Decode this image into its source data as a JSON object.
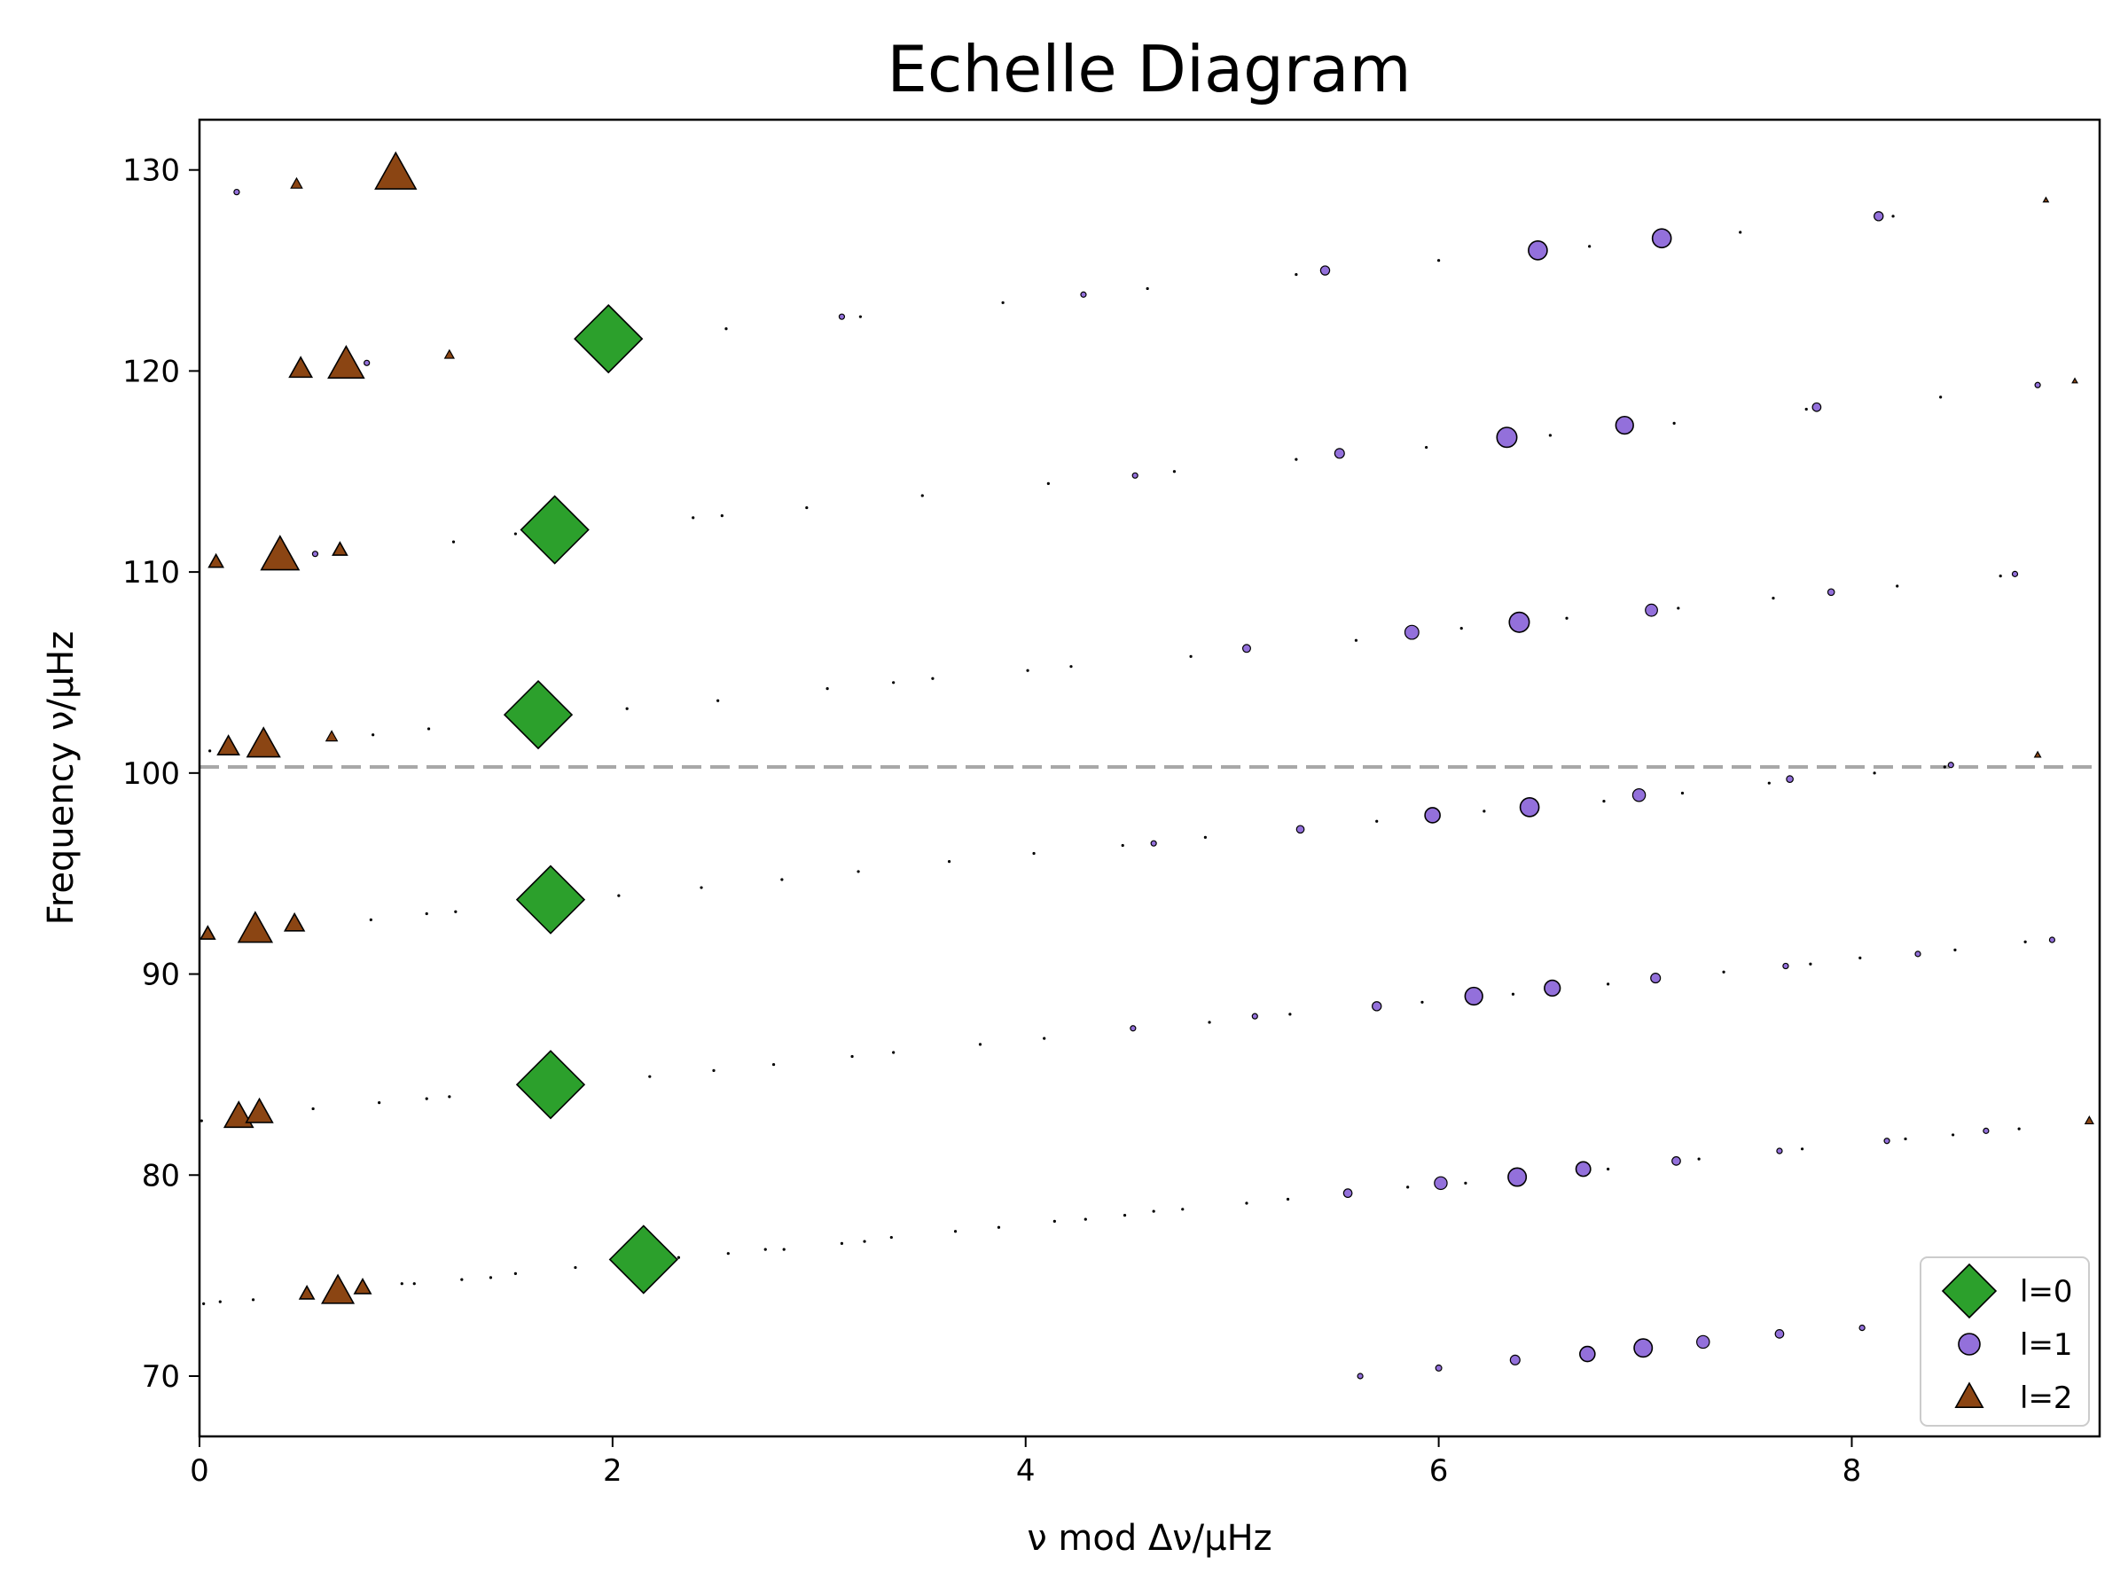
{
  "chart_data": {
    "type": "scatter",
    "title": "Echelle Diagram",
    "xlabel": "ν mod Δν/μHz",
    "ylabel": "Frequency ν/μHz",
    "xlim": [
      0,
      9.2
    ],
    "ylim": [
      67,
      132.5
    ],
    "xticks": [
      0,
      2,
      4,
      6,
      8
    ],
    "yticks": [
      70,
      80,
      90,
      100,
      110,
      120,
      130
    ],
    "grid": false,
    "legend_position": "bottom-right",
    "reference_line": {
      "y": 100.3,
      "style": "dashed",
      "color": "#a8a8a8"
    },
    "series": [
      {
        "name": "l=0",
        "marker": "diamond",
        "color": "#2ca02c",
        "points": [
          {
            "x": 2.15,
            "y": 75.8,
            "s": 1.0
          },
          {
            "x": 1.7,
            "y": 84.5,
            "s": 1.0
          },
          {
            "x": 1.7,
            "y": 93.7,
            "s": 1.0
          },
          {
            "x": 1.64,
            "y": 102.9,
            "s": 1.0
          },
          {
            "x": 1.72,
            "y": 112.1,
            "s": 1.0
          },
          {
            "x": 1.98,
            "y": 121.6,
            "s": 1.0
          }
        ]
      },
      {
        "name": "l=1",
        "marker": "circle",
        "color": "#9370db",
        "points": [
          {
            "x": 5.62,
            "y": 70.0,
            "s": 0.15
          },
          {
            "x": 6.0,
            "y": 70.4,
            "s": 0.2
          },
          {
            "x": 6.37,
            "y": 70.8,
            "s": 0.32
          },
          {
            "x": 6.72,
            "y": 71.1,
            "s": 0.5
          },
          {
            "x": 6.99,
            "y": 71.4,
            "s": 0.6
          },
          {
            "x": 7.28,
            "y": 71.7,
            "s": 0.42
          },
          {
            "x": 7.65,
            "y": 72.1,
            "s": 0.28
          },
          {
            "x": 8.05,
            "y": 72.4,
            "s": 0.18
          },
          {
            "x": 5.56,
            "y": 79.1,
            "s": 0.28
          },
          {
            "x": 6.01,
            "y": 79.6,
            "s": 0.42
          },
          {
            "x": 6.38,
            "y": 79.9,
            "s": 0.6
          },
          {
            "x": 6.7,
            "y": 80.3,
            "s": 0.48
          },
          {
            "x": 7.15,
            "y": 80.7,
            "s": 0.28
          },
          {
            "x": 7.65,
            "y": 81.2,
            "s": 0.18
          },
          {
            "x": 8.17,
            "y": 81.7,
            "s": 0.12
          },
          {
            "x": 8.65,
            "y": 82.2,
            "s": 0.08
          },
          {
            "x": 4.52,
            "y": 87.3,
            "s": 0.12
          },
          {
            "x": 5.11,
            "y": 87.9,
            "s": 0.15
          },
          {
            "x": 5.7,
            "y": 88.4,
            "s": 0.3
          },
          {
            "x": 6.17,
            "y": 88.9,
            "s": 0.58
          },
          {
            "x": 6.55,
            "y": 89.3,
            "s": 0.52
          },
          {
            "x": 7.05,
            "y": 89.8,
            "s": 0.32
          },
          {
            "x": 7.68,
            "y": 90.4,
            "s": 0.18
          },
          {
            "x": 8.32,
            "y": 91.0,
            "s": 0.12
          },
          {
            "x": 8.97,
            "y": 91.7,
            "s": 0.1
          },
          {
            "x": 4.62,
            "y": 96.5,
            "s": 0.15
          },
          {
            "x": 5.33,
            "y": 97.2,
            "s": 0.25
          },
          {
            "x": 5.97,
            "y": 97.9,
            "s": 0.5
          },
          {
            "x": 6.44,
            "y": 98.3,
            "s": 0.62
          },
          {
            "x": 6.97,
            "y": 98.9,
            "s": 0.42
          },
          {
            "x": 7.7,
            "y": 99.7,
            "s": 0.22
          },
          {
            "x": 8.48,
            "y": 100.4,
            "s": 0.15
          },
          {
            "x": 5.07,
            "y": 106.2,
            "s": 0.26
          },
          {
            "x": 5.87,
            "y": 107.0,
            "s": 0.46
          },
          {
            "x": 6.39,
            "y": 107.5,
            "s": 0.66
          },
          {
            "x": 7.03,
            "y": 108.1,
            "s": 0.4
          },
          {
            "x": 7.9,
            "y": 109.0,
            "s": 0.22
          },
          {
            "x": 8.79,
            "y": 109.9,
            "s": 0.15
          },
          {
            "x": 4.53,
            "y": 114.8,
            "s": 0.16
          },
          {
            "x": 5.52,
            "y": 115.9,
            "s": 0.32
          },
          {
            "x": 6.33,
            "y": 116.7,
            "s": 0.66
          },
          {
            "x": 6.9,
            "y": 117.3,
            "s": 0.58
          },
          {
            "x": 7.83,
            "y": 118.2,
            "s": 0.28
          },
          {
            "x": 8.9,
            "y": 119.3,
            "s": 0.16
          },
          {
            "x": 4.28,
            "y": 123.8,
            "s": 0.15
          },
          {
            "x": 5.45,
            "y": 125.0,
            "s": 0.3
          },
          {
            "x": 6.48,
            "y": 126.0,
            "s": 0.62
          },
          {
            "x": 7.08,
            "y": 126.6,
            "s": 0.62
          },
          {
            "x": 8.13,
            "y": 127.7,
            "s": 0.3
          },
          {
            "x": 0.18,
            "y": 128.9,
            "s": 0.18
          },
          {
            "x": 0.81,
            "y": 120.4,
            "s": 0.15
          },
          {
            "x": 0.56,
            "y": 110.9,
            "s": 0.12
          },
          {
            "x": 3.11,
            "y": 122.7,
            "s": 0.12
          }
        ]
      },
      {
        "name": "l=2",
        "marker": "triangle",
        "color": "#8b4513",
        "points": [
          {
            "x": 0.67,
            "y": 74.2,
            "s": 0.62
          },
          {
            "x": 0.52,
            "y": 74.1,
            "s": 0.28
          },
          {
            "x": 0.79,
            "y": 74.4,
            "s": 0.32
          },
          {
            "x": 0.19,
            "y": 82.9,
            "s": 0.56
          },
          {
            "x": 0.29,
            "y": 83.1,
            "s": 0.52
          },
          {
            "x": 0.27,
            "y": 92.2,
            "s": 0.66
          },
          {
            "x": 0.46,
            "y": 92.5,
            "s": 0.38
          },
          {
            "x": 0.04,
            "y": 92.0,
            "s": 0.28
          },
          {
            "x": 0.31,
            "y": 101.4,
            "s": 0.64
          },
          {
            "x": 0.14,
            "y": 101.3,
            "s": 0.42
          },
          {
            "x": 0.64,
            "y": 101.8,
            "s": 0.22
          },
          {
            "x": 0.39,
            "y": 110.8,
            "s": 0.74
          },
          {
            "x": 0.08,
            "y": 110.5,
            "s": 0.28
          },
          {
            "x": 0.68,
            "y": 111.1,
            "s": 0.28
          },
          {
            "x": 0.71,
            "y": 120.3,
            "s": 0.7
          },
          {
            "x": 0.49,
            "y": 120.1,
            "s": 0.44
          },
          {
            "x": 1.21,
            "y": 120.8,
            "s": 0.18
          },
          {
            "x": 0.95,
            "y": 129.8,
            "s": 0.8
          },
          {
            "x": 0.47,
            "y": 129.3,
            "s": 0.22
          },
          {
            "x": 9.15,
            "y": 82.7,
            "s": 0.16
          },
          {
            "x": 8.9,
            "y": 100.9,
            "s": 0.12
          },
          {
            "x": 8.94,
            "y": 128.5,
            "s": 0.1
          },
          {
            "x": 9.08,
            "y": 119.5,
            "s": 0.1
          }
        ]
      }
    ],
    "minor_points": [
      [
        0.02,
        73.6
      ],
      [
        0.1,
        73.7
      ],
      [
        0.26,
        73.8
      ],
      [
        0.98,
        74.6
      ],
      [
        1.04,
        74.6
      ],
      [
        1.27,
        74.8
      ],
      [
        1.41,
        74.9
      ],
      [
        1.53,
        75.1
      ],
      [
        1.82,
        75.4
      ],
      [
        2.32,
        75.9
      ],
      [
        2.56,
        76.1
      ],
      [
        2.74,
        76.3
      ],
      [
        2.83,
        76.3
      ],
      [
        3.11,
        76.6
      ],
      [
        3.22,
        76.7
      ],
      [
        3.35,
        76.9
      ],
      [
        3.66,
        77.2
      ],
      [
        3.87,
        77.4
      ],
      [
        4.14,
        77.7
      ],
      [
        4.29,
        77.8
      ],
      [
        4.48,
        78.0
      ],
      [
        4.62,
        78.2
      ],
      [
        4.76,
        78.3
      ],
      [
        5.07,
        78.6
      ],
      [
        5.27,
        78.8
      ],
      [
        5.85,
        79.4
      ],
      [
        6.13,
        79.6
      ],
      [
        6.82,
        80.3
      ],
      [
        7.26,
        80.8
      ],
      [
        7.76,
        81.3
      ],
      [
        8.26,
        81.8
      ],
      [
        8.49,
        82.0
      ],
      [
        8.81,
        82.3
      ],
      [
        0.01,
        82.7
      ],
      [
        0.55,
        83.3
      ],
      [
        0.87,
        83.6
      ],
      [
        1.1,
        83.8
      ],
      [
        1.21,
        83.9
      ],
      [
        1.82,
        84.6
      ],
      [
        2.18,
        84.9
      ],
      [
        2.49,
        85.2
      ],
      [
        2.78,
        85.5
      ],
      [
        3.16,
        85.9
      ],
      [
        3.36,
        86.1
      ],
      [
        3.78,
        86.5
      ],
      [
        4.09,
        86.8
      ],
      [
        4.89,
        87.6
      ],
      [
        5.28,
        88.0
      ],
      [
        5.92,
        88.6
      ],
      [
        6.36,
        89.0
      ],
      [
        6.82,
        89.5
      ],
      [
        7.38,
        90.1
      ],
      [
        7.8,
        90.5
      ],
      [
        8.04,
        90.8
      ],
      [
        8.5,
        91.2
      ],
      [
        8.84,
        91.6
      ],
      [
        0.83,
        92.7
      ],
      [
        1.1,
        93.0
      ],
      [
        1.24,
        93.1
      ],
      [
        2.03,
        93.9
      ],
      [
        2.43,
        94.3
      ],
      [
        2.82,
        94.7
      ],
      [
        3.19,
        95.1
      ],
      [
        3.63,
        95.6
      ],
      [
        4.04,
        96.0
      ],
      [
        4.47,
        96.4
      ],
      [
        4.87,
        96.8
      ],
      [
        5.7,
        97.6
      ],
      [
        6.22,
        98.1
      ],
      [
        6.8,
        98.6
      ],
      [
        7.18,
        99.0
      ],
      [
        7.6,
        99.5
      ],
      [
        8.11,
        100.0
      ],
      [
        8.45,
        100.3
      ],
      [
        0.05,
        101.1
      ],
      [
        0.84,
        101.9
      ],
      [
        1.11,
        102.2
      ],
      [
        1.55,
        102.7
      ],
      [
        2.07,
        103.2
      ],
      [
        2.51,
        103.6
      ],
      [
        3.04,
        104.2
      ],
      [
        3.36,
        104.5
      ],
      [
        3.55,
        104.7
      ],
      [
        4.01,
        105.1
      ],
      [
        4.22,
        105.3
      ],
      [
        4.8,
        105.8
      ],
      [
        5.6,
        106.6
      ],
      [
        6.11,
        107.2
      ],
      [
        6.62,
        107.7
      ],
      [
        7.16,
        108.2
      ],
      [
        7.62,
        108.7
      ],
      [
        8.22,
        109.3
      ],
      [
        8.72,
        109.8
      ],
      [
        1.23,
        111.5
      ],
      [
        1.53,
        111.9
      ],
      [
        1.85,
        112.2
      ],
      [
        2.39,
        112.7
      ],
      [
        2.53,
        112.8
      ],
      [
        2.94,
        113.2
      ],
      [
        3.5,
        113.8
      ],
      [
        4.11,
        114.4
      ],
      [
        4.72,
        115.0
      ],
      [
        5.31,
        115.6
      ],
      [
        5.94,
        116.2
      ],
      [
        6.54,
        116.8
      ],
      [
        7.14,
        117.4
      ],
      [
        7.78,
        118.1
      ],
      [
        8.43,
        118.7
      ],
      [
        1.85,
        121.4
      ],
      [
        2.55,
        122.1
      ],
      [
        3.2,
        122.7
      ],
      [
        3.89,
        123.4
      ],
      [
        4.59,
        124.1
      ],
      [
        5.31,
        124.8
      ],
      [
        6.0,
        125.5
      ],
      [
        6.73,
        126.2
      ],
      [
        7.46,
        126.9
      ],
      [
        8.2,
        127.7
      ]
    ]
  }
}
